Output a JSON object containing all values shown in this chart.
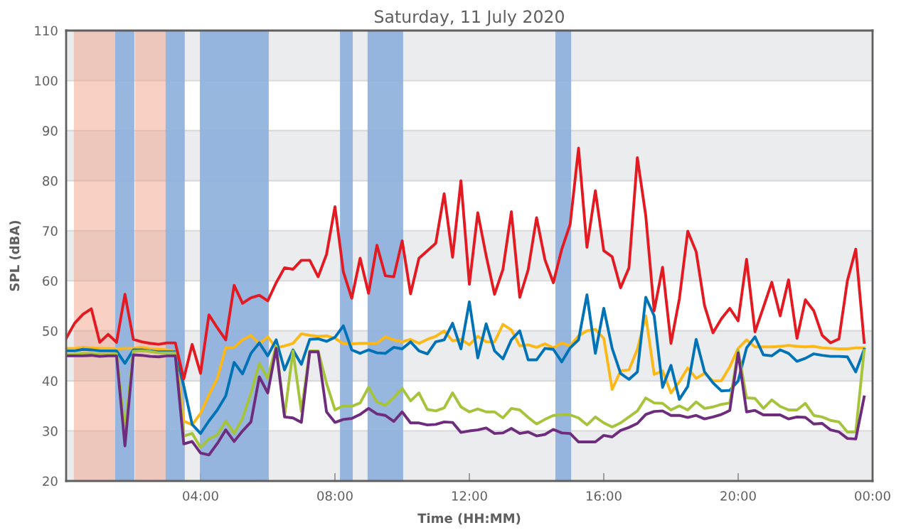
{
  "chart_data": {
    "type": "line",
    "title": "Saturday, 11 July 2020",
    "xlabel": "Time (HH:MM)",
    "ylabel": "SPL (dBA)",
    "x": [
      0,
      0.25,
      0.5,
      0.75,
      1,
      1.25,
      1.5,
      1.75,
      2,
      2.25,
      2.5,
      2.75,
      3,
      3.25,
      3.5,
      3.75,
      4,
      4.25,
      4.5,
      4.75,
      5,
      5.25,
      5.5,
      5.75,
      6,
      6.25,
      6.5,
      6.75,
      7,
      7.25,
      7.5,
      7.75,
      8,
      8.25,
      8.5,
      8.75,
      9,
      9.25,
      9.5,
      9.75,
      10,
      10.25,
      10.5,
      10.75,
      11,
      11.25,
      11.5,
      11.75,
      12,
      12.25,
      12.5,
      12.75,
      13,
      13.25,
      13.5,
      13.75,
      14,
      14.25,
      14.5,
      14.75,
      15,
      15.25,
      15.5,
      15.75,
      16,
      16.25,
      16.5,
      16.75,
      17,
      17.25,
      17.5,
      17.75,
      18,
      18.25,
      18.5,
      18.75,
      19,
      19.25,
      19.5,
      19.75,
      20,
      20.25,
      20.5,
      20.75,
      21,
      21.25,
      21.5,
      21.75,
      22,
      22.25,
      22.5,
      22.75,
      23,
      23.25,
      23.5,
      23.75
    ],
    "series": [
      {
        "color": "#fbb817",
        "values": [
          46.5,
          46.5,
          46.7,
          46.6,
          46.5,
          46.5,
          46.4,
          46.5,
          46.5,
          46.7,
          46.4,
          46.3,
          46.2,
          45.8,
          32.0,
          31.2,
          33.5,
          37.2,
          40.5,
          46.6,
          46.7,
          48.2,
          49.1,
          47.4,
          48.8,
          46.6,
          47.0,
          47.5,
          49.4,
          49.1,
          48.9,
          49.0,
          48.5,
          47.4,
          47.4,
          47.5,
          47.5,
          47.5,
          48.8,
          48.2,
          47.8,
          48.3,
          47.5,
          48.3,
          48.9,
          50.0,
          48.0,
          48.3,
          47.2,
          48.9,
          47.8,
          47.8,
          51.3,
          50.2,
          47.0,
          47.2,
          46.7,
          47.4,
          46.6,
          47.6,
          47.0,
          49.0,
          50.0,
          50.3,
          48.5,
          38.3,
          42.0,
          42.2,
          46.3,
          53.0,
          41.3,
          42.0,
          37.6,
          39.8,
          42.6,
          40.5,
          41.5,
          40.0,
          40.0,
          42.8,
          46.5,
          48.2,
          46.8,
          46.8,
          46.8,
          46.9,
          47.1,
          46.9,
          46.8,
          46.9,
          46.6,
          46.5,
          46.4,
          46.4,
          46.6,
          46.6
        ]
      },
      {
        "color": "#0073b7",
        "values": [
          46.0,
          46.0,
          46.3,
          46.2,
          46.0,
          46.0,
          46.0,
          43.5,
          46.2,
          46.2,
          46.0,
          45.8,
          45.8,
          45.8,
          39.0,
          31.3,
          29.5,
          32.0,
          34.2,
          37.0,
          43.7,
          41.4,
          45.5,
          47.6,
          45.0,
          48.2,
          42.2,
          46.2,
          43.3,
          48.3,
          48.4,
          47.9,
          48.7,
          51.0,
          46.2,
          45.5,
          46.2,
          45.6,
          45.5,
          46.7,
          46.4,
          47.8,
          46.0,
          45.4,
          47.8,
          48.2,
          51.5,
          46.4,
          55.8,
          44.6,
          51.4,
          46.0,
          44.4,
          48.2,
          50.0,
          44.2,
          44.2,
          46.5,
          46.3,
          43.8,
          46.6,
          48.2,
          57.2,
          45.5,
          54.5,
          46.5,
          41.5,
          40.3,
          41.8,
          56.7,
          53.0,
          38.7,
          43.1,
          36.3,
          38.9,
          48.3,
          41.8,
          39.6,
          38.0,
          38.1,
          40.0,
          46.6,
          48.8,
          45.2,
          45.0,
          46.2,
          45.5,
          43.9,
          44.5,
          45.4,
          45.1,
          44.9,
          44.9,
          44.8,
          41.8,
          46.3
        ]
      },
      {
        "color": "#a5c43a",
        "values": [
          45.3,
          45.3,
          45.5,
          45.5,
          45.3,
          45.3,
          45.4,
          30.0,
          45.9,
          46.0,
          45.9,
          45.6,
          45.6,
          45.6,
          29.0,
          29.5,
          26.7,
          28.4,
          29.2,
          32.0,
          29.5,
          32.5,
          37.5,
          43.5,
          40.5,
          47.0,
          33.0,
          46.0,
          33.9,
          46.0,
          46.0,
          39.5,
          34.2,
          35.0,
          34.9,
          35.6,
          38.7,
          35.8,
          35.1,
          36.6,
          38.5,
          36.0,
          37.6,
          34.3,
          34.0,
          34.6,
          37.6,
          34.8,
          33.8,
          34.4,
          33.8,
          33.8,
          32.6,
          34.5,
          34.2,
          32.7,
          31.4,
          32.3,
          33.1,
          33.2,
          33.2,
          32.6,
          31.2,
          32.8,
          31.6,
          30.8,
          31.6,
          32.8,
          34.0,
          36.6,
          35.6,
          35.5,
          34.2,
          35.0,
          34.2,
          35.8,
          34.5,
          34.8,
          35.3,
          35.6,
          46.1,
          36.6,
          36.5,
          34.5,
          36.2,
          34.9,
          34.2,
          34.2,
          35.5,
          33.1,
          32.8,
          32.1,
          31.8,
          29.8,
          29.8,
          46.1
        ]
      },
      {
        "color": "#6e2c7c",
        "values": [
          45.0,
          45.0,
          45.0,
          45.1,
          44.9,
          45.0,
          45.0,
          27.0,
          45.2,
          45.1,
          44.9,
          44.8,
          45.0,
          45.0,
          27.4,
          27.9,
          25.6,
          25.2,
          27.5,
          30.2,
          27.9,
          30.0,
          31.8,
          40.8,
          37.6,
          46.5,
          32.8,
          32.6,
          31.7,
          45.8,
          45.8,
          33.8,
          31.7,
          32.3,
          32.5,
          33.3,
          34.5,
          33.4,
          33.1,
          31.9,
          33.8,
          31.6,
          31.6,
          31.2,
          31.3,
          31.8,
          31.7,
          29.7,
          30.0,
          30.2,
          30.6,
          29.5,
          29.6,
          30.5,
          29.5,
          29.8,
          29.0,
          29.3,
          30.3,
          29.6,
          29.5,
          27.8,
          27.8,
          27.8,
          29.1,
          28.8,
          30.1,
          30.7,
          31.5,
          33.3,
          33.9,
          34.0,
          33.1,
          33.1,
          32.7,
          33.1,
          32.4,
          32.8,
          33.3,
          34.1,
          45.6,
          33.8,
          34.1,
          33.2,
          33.2,
          33.2,
          32.4,
          32.8,
          32.7,
          31.4,
          31.5,
          30.2,
          29.8,
          28.5,
          28.4,
          36.8
        ]
      },
      {
        "color": "#e31a22",
        "values": [
          48.5,
          51.5,
          53.3,
          54.4,
          47.7,
          49.3,
          47.7,
          57.3,
          48.3,
          47.8,
          47.5,
          47.3,
          47.6,
          47.6,
          40.4,
          47.3,
          41.5,
          53.2,
          50.6,
          48.2,
          59.1,
          55.5,
          56.6,
          57.1,
          56.0,
          59.6,
          62.6,
          62.3,
          64.1,
          64.1,
          60.8,
          65.3,
          74.8,
          61.8,
          56.5,
          64.5,
          57.5,
          67.1,
          61.0,
          60.8,
          68.0,
          57.4,
          64.5,
          66.0,
          67.5,
          77.4,
          64.7,
          80.0,
          59.3,
          73.6,
          65.0,
          57.3,
          62.3,
          73.8,
          56.7,
          62.2,
          72.6,
          64.2,
          59.6,
          66.3,
          71.3,
          86.5,
          66.7,
          78.0,
          66.0,
          64.8,
          58.6,
          62.6,
          84.6,
          73.0,
          54.0,
          62.7,
          47.5,
          56.4,
          69.9,
          65.8,
          55.0,
          49.6,
          52.4,
          54.5,
          52.0,
          64.3,
          49.8,
          54.7,
          59.7,
          53.0,
          60.2,
          48.5,
          56.2,
          54.0,
          49.1,
          47.6,
          48.4,
          60.0,
          66.3,
          47.7
        ]
      }
    ],
    "xlim": [
      0,
      24
    ],
    "xticks": [
      {
        "value": 4,
        "label": "04:00"
      },
      {
        "value": 8,
        "label": "08:00"
      },
      {
        "value": 12,
        "label": "12:00"
      },
      {
        "value": 16,
        "label": "16:00"
      },
      {
        "value": 20,
        "label": "20:00"
      },
      {
        "value": 24,
        "label": "00:00"
      }
    ],
    "ylim": [
      20,
      110
    ],
    "yticks": [
      20,
      30,
      40,
      50,
      60,
      70,
      80,
      90,
      100,
      110
    ],
    "grid": "y",
    "marker": "none",
    "line_style": "solid",
    "bands": [
      {
        "axis": "y",
        "from": 20,
        "to": 30,
        "color": "#ebecee"
      },
      {
        "axis": "y",
        "from": 40,
        "to": 50,
        "color": "#ebecee"
      },
      {
        "axis": "y",
        "from": 60,
        "to": 70,
        "color": "#ebecee"
      },
      {
        "axis": "y",
        "from": 80,
        "to": 90,
        "color": "#ebecee"
      },
      {
        "axis": "y",
        "from": 100,
        "to": 110,
        "color": "#ebecee"
      },
      {
        "axis": "x",
        "from": 0.23,
        "to": 1.46,
        "color": "#f1a189"
      },
      {
        "axis": "x",
        "from": 1.46,
        "to": 2.03,
        "color": "#8dafdb"
      },
      {
        "axis": "x",
        "from": 2.05,
        "to": 2.96,
        "color": "#f1a189"
      },
      {
        "axis": "x",
        "from": 2.96,
        "to": 3.53,
        "color": "#8dafdb"
      },
      {
        "axis": "x",
        "from": 3.98,
        "to": 6.03,
        "color": "#8dafdb"
      },
      {
        "axis": "x",
        "from": 8.15,
        "to": 8.53,
        "color": "#8dafdb"
      },
      {
        "axis": "x",
        "from": 8.97,
        "to": 10.03,
        "color": "#8dafdb"
      },
      {
        "axis": "x",
        "from": 14.56,
        "to": 15.03,
        "color": "#8dafdb"
      }
    ]
  }
}
